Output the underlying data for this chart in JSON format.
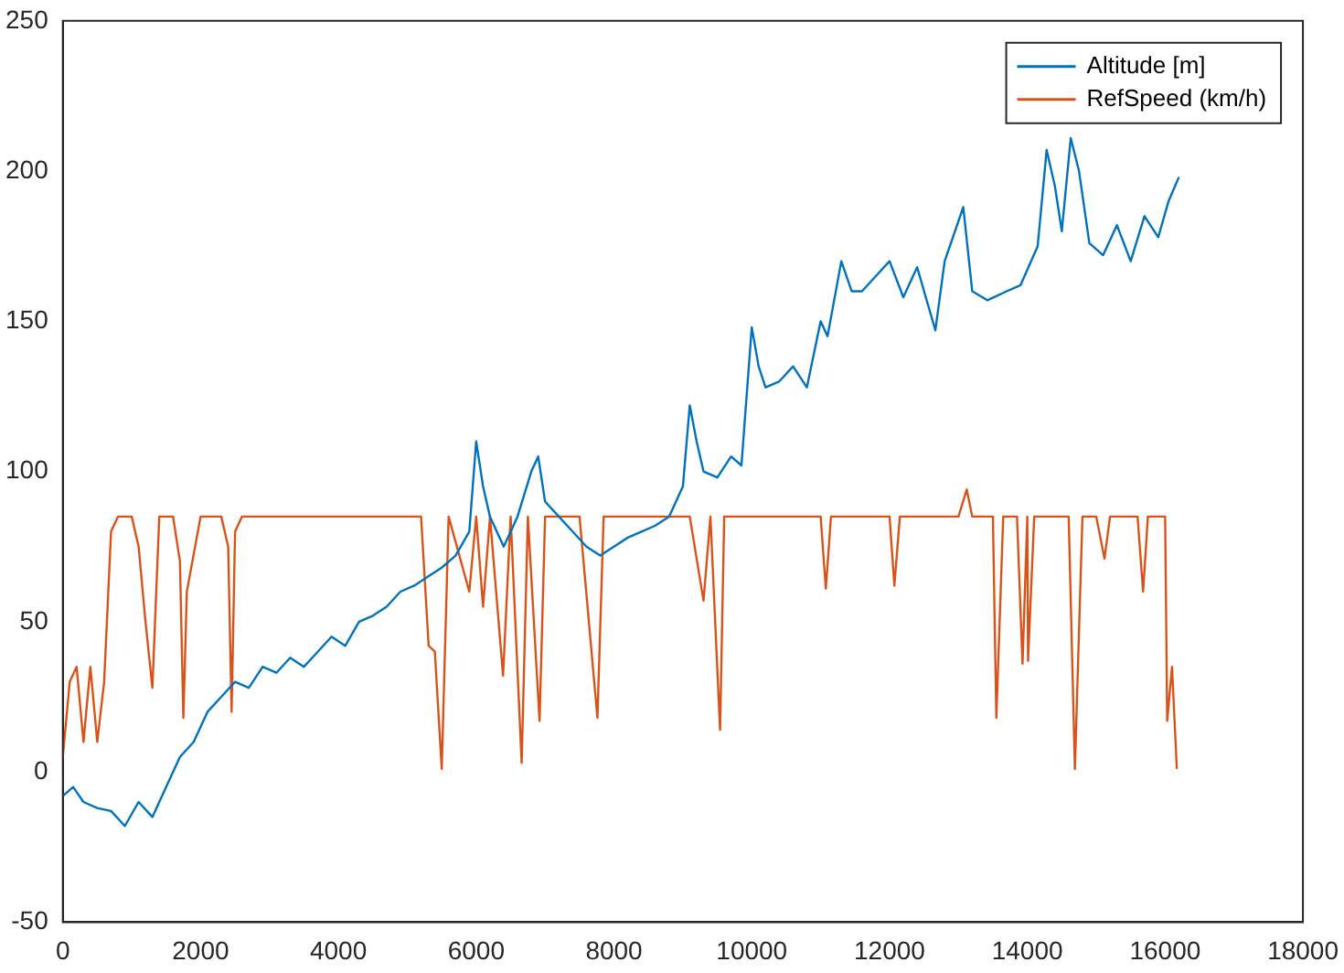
{
  "chart_data": {
    "type": "line",
    "xlim": [
      0,
      18000
    ],
    "ylim": [
      -50,
      250
    ],
    "xticks": [
      0,
      2000,
      4000,
      6000,
      8000,
      10000,
      12000,
      14000,
      16000,
      18000
    ],
    "yticks": [
      -50,
      0,
      50,
      100,
      150,
      200,
      250
    ],
    "grid": false,
    "legend": "top right",
    "marker": "none",
    "line_style": "solid",
    "series": [
      {
        "name": "Altitude [m]",
        "color": "#0072bd",
        "x": [
          0,
          150,
          300,
          500,
          700,
          900,
          1100,
          1300,
          1500,
          1700,
          1900,
          2100,
          2300,
          2500,
          2700,
          2900,
          3100,
          3300,
          3500,
          3700,
          3900,
          4100,
          4300,
          4500,
          4700,
          4900,
          5100,
          5300,
          5500,
          5700,
          5900,
          6000,
          6100,
          6200,
          6400,
          6600,
          6800,
          6900,
          7000,
          7200,
          7400,
          7600,
          7800,
          8000,
          8200,
          8400,
          8600,
          8800,
          9000,
          9100,
          9200,
          9300,
          9500,
          9700,
          9850,
          10000,
          10100,
          10200,
          10400,
          10600,
          10800,
          11000,
          11100,
          11300,
          11450,
          11600,
          11800,
          12000,
          12200,
          12400,
          12665,
          12800,
          13070,
          13200,
          13420,
          13700,
          13900,
          14150,
          14280,
          14400,
          14500,
          14630,
          14750,
          14900,
          15100,
          15300,
          15500,
          15700,
          15900,
          16050,
          16200
        ],
        "values": [
          -8,
          -5,
          -10,
          -12,
          -13,
          -18,
          -10,
          -15,
          -5,
          5,
          10,
          20,
          25,
          30,
          28,
          35,
          33,
          38,
          35,
          40,
          45,
          42,
          50,
          52,
          55,
          60,
          62,
          65,
          68,
          72,
          80,
          110,
          95,
          85,
          75,
          85,
          100,
          105,
          90,
          85,
          80,
          75,
          72,
          75,
          78,
          80,
          82,
          85,
          95,
          122,
          110,
          100,
          98,
          105,
          102,
          148,
          135,
          128,
          130,
          135,
          128,
          150,
          145,
          170,
          160,
          160,
          165,
          170,
          158,
          168,
          147,
          170,
          188,
          160,
          157,
          160,
          162,
          175,
          207,
          195,
          180,
          211,
          200,
          176,
          172,
          182,
          170,
          185,
          178,
          190,
          198
        ]
      },
      {
        "name": "RefSpeed (km/h)",
        "color": "#d95319",
        "x": [
          0,
          100,
          200,
          300,
          400,
          500,
          600,
          700,
          800,
          1000,
          1100,
          1200,
          1300,
          1400,
          1600,
          1700,
          1750,
          1800,
          2000,
          2300,
          2400,
          2450,
          2500,
          2600,
          3200,
          4000,
          5200,
          5310,
          5400,
          5500,
          5600,
          5900,
          6000,
          6100,
          6200,
          6390,
          6500,
          6660,
          6750,
          6920,
          7000,
          7200,
          7500,
          7760,
          7850,
          8500,
          9100,
          9300,
          9400,
          9540,
          9600,
          10000,
          11000,
          11075,
          11150,
          12000,
          12070,
          12150,
          13000,
          13120,
          13200,
          13500,
          13550,
          13650,
          13850,
          13930,
          14000,
          14010,
          14100,
          14600,
          14690,
          14800,
          15000,
          15120,
          15200,
          15600,
          15680,
          15750,
          16000,
          16030,
          16100,
          16170
        ],
        "values": [
          5,
          30,
          35,
          10,
          35,
          10,
          30,
          80,
          85,
          85,
          75,
          50,
          28,
          85,
          85,
          70,
          18,
          60,
          85,
          85,
          75,
          20,
          80,
          85,
          85,
          85,
          85,
          42,
          40,
          1,
          85,
          60,
          85,
          55,
          85,
          32,
          85,
          3,
          85,
          17,
          85,
          85,
          85,
          18,
          85,
          85,
          85,
          57,
          85,
          14,
          85,
          85,
          85,
          61,
          85,
          85,
          62,
          85,
          85,
          94,
          85,
          85,
          18,
          85,
          85,
          36,
          85,
          37,
          85,
          85,
          1,
          85,
          85,
          71,
          85,
          85,
          60,
          85,
          85,
          17,
          35,
          1
        ]
      }
    ]
  }
}
